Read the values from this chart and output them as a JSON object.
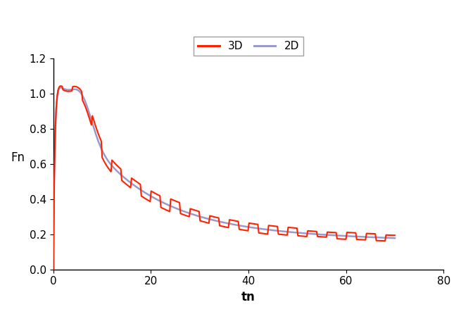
{
  "xlabel": "tn",
  "ylabel": "Fn",
  "xlim": [
    0,
    80
  ],
  "ylim": [
    0,
    1.2
  ],
  "xticks": [
    0,
    20,
    40,
    60,
    80
  ],
  "yticks": [
    0,
    0.2,
    0.4,
    0.6,
    0.8,
    1.0,
    1.2
  ],
  "color_3d": "#ff2200",
  "color_2d": "#9999cc",
  "legend_labels": [
    "3D",
    "2D"
  ],
  "linewidth_3d": 1.5,
  "linewidth_2d": 1.8,
  "background_color": "#ffffff"
}
